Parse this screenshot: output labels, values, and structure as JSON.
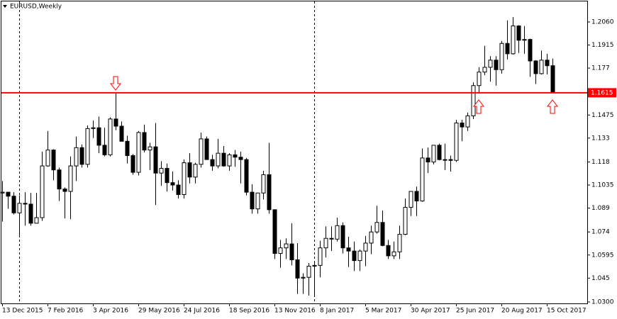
{
  "chart_data": {
    "type": "candlestick",
    "title": "EURUSD,Weekly",
    "categories": [
      "13 Dec 2015",
      null,
      null,
      null,
      null,
      null,
      null,
      null,
      "7 Feb 2016",
      null,
      null,
      null,
      null,
      null,
      null,
      null,
      "3 Apr 2016",
      null,
      null,
      null,
      null,
      null,
      null,
      null,
      "29 May 2016",
      null,
      null,
      null,
      null,
      null,
      null,
      null,
      "24 Jul 2016",
      null,
      null,
      null,
      null,
      null,
      null,
      null,
      "18 Sep 2016",
      null,
      null,
      null,
      null,
      null,
      null,
      null,
      "13 Nov 2016",
      null,
      null,
      null,
      null,
      null,
      null,
      null,
      "8 Jan 2017",
      null,
      null,
      null,
      null,
      null,
      null,
      null,
      "5 Mar 2017",
      null,
      null,
      null,
      null,
      null,
      null,
      null,
      "30 Apr 2017",
      null,
      null,
      null,
      null,
      null,
      null,
      null,
      "25 Jun 2017",
      null,
      null,
      null,
      null,
      null,
      null,
      null,
      "20 Aug 2017",
      null,
      null,
      null,
      null,
      null,
      null,
      null,
      "15 Oct 2017",
      null
    ],
    "open": [
      1.0985,
      1.099,
      1.0965,
      1.086,
      1.092,
      1.0915,
      1.0795,
      1.083,
      1.1155,
      1.1255,
      1.113,
      1.101,
      1.0995,
      1.1155,
      1.127,
      1.1165,
      1.139,
      1.1395,
      1.1285,
      1.1225,
      1.145,
      1.1405,
      1.131,
      1.122,
      1.1115,
      1.1365,
      1.1255,
      1.1275,
      1.111,
      1.114,
      1.105,
      1.1035,
      1.0975,
      1.1175,
      1.1085,
      1.1165,
      1.1325,
      1.1195,
      1.1155,
      1.1235,
      1.1155,
      1.1225,
      1.121,
      1.1195,
      1.099,
      1.0885,
      1.0985,
      1.11,
      1.088,
      1.0605,
      1.064,
      1.0665,
      1.0565,
      1.045,
      1.0455,
      1.0525,
      1.053,
      1.064,
      1.07,
      1.0695,
      1.078,
      1.064,
      1.062,
      1.056,
      1.062,
      1.067,
      1.074,
      1.08,
      1.0655,
      1.059,
      1.0615,
      1.0725,
      1.0895,
      1.0995,
      1.0935,
      1.1205,
      1.118,
      1.1285,
      1.1195,
      1.1195,
      1.119,
      1.1425,
      1.14,
      1.147,
      1.166,
      1.1745,
      1.1775,
      1.182,
      1.176,
      1.1925,
      1.186,
      1.2035,
      1.1945,
      1.195,
      1.1815,
      1.1735,
      1.182,
      1.1785
    ],
    "high": [
      1.106,
      1.099,
      1.099,
      1.097,
      1.099,
      1.0985,
      1.0985,
      1.1245,
      1.1375,
      1.126,
      1.1145,
      1.102,
      1.1215,
      1.134,
      1.129,
      1.141,
      1.144,
      1.1465,
      1.1395,
      1.146,
      1.1615,
      1.1435,
      1.1345,
      1.123,
      1.1375,
      1.1415,
      1.13,
      1.1425,
      1.1185,
      1.117,
      1.112,
      1.1065,
      1.1195,
      1.1235,
      1.1175,
      1.1365,
      1.134,
      1.1225,
      1.1325,
      1.128,
      1.1235,
      1.1255,
      1.1245,
      1.1205,
      1.104,
      1.0985,
      1.1125,
      1.13,
      1.088,
      1.069,
      1.07,
      1.0795,
      1.067,
      1.048,
      1.0545,
      1.0545,
      1.0685,
      1.0775,
      1.0775,
      1.083,
      1.08,
      1.071,
      1.068,
      1.063,
      1.0715,
      1.078,
      1.0905,
      1.0875,
      1.069,
      1.068,
      1.078,
      1.095,
      1.0995,
      1.1025,
      1.1265,
      1.127,
      1.1285,
      1.1295,
      1.1295,
      1.122,
      1.1445,
      1.1445,
      1.149,
      1.168,
      1.1775,
      1.191,
      1.1845,
      1.1845,
      1.194,
      1.207,
      1.209,
      1.204,
      1.2035,
      1.1955,
      1.182,
      1.188,
      1.186,
      1.183
    ],
    "low": [
      1.0805,
      1.0885,
      1.085,
      1.071,
      1.078,
      1.078,
      1.0795,
      1.081,
      1.115,
      1.1065,
      1.0935,
      1.0825,
      1.082,
      1.106,
      1.1145,
      1.1145,
      1.133,
      1.1235,
      1.1215,
      1.1215,
      1.138,
      1.131,
      1.117,
      1.11,
      1.1095,
      1.124,
      1.113,
      1.091,
      1.103,
      1.0995,
      1.1,
      1.095,
      1.095,
      1.1045,
      1.1045,
      1.1145,
      1.1195,
      1.1125,
      1.114,
      1.115,
      1.1125,
      1.115,
      1.1045,
      1.097,
      1.0855,
      1.0855,
      1.0945,
      1.0855,
      1.057,
      1.0515,
      1.057,
      1.053,
      1.035,
      1.035,
      1.034,
      1.034,
      1.0455,
      1.058,
      1.062,
      1.068,
      1.0605,
      1.052,
      1.0495,
      1.0495,
      1.0525,
      1.06,
      1.073,
      1.065,
      1.057,
      1.057,
      1.057,
      1.072,
      1.084,
      1.084,
      1.093,
      1.111,
      1.1165,
      1.119,
      1.113,
      1.112,
      1.118,
      1.131,
      1.1375,
      1.145,
      1.161,
      1.1725,
      1.1685,
      1.166,
      1.1735,
      1.1825,
      1.1855,
      1.1865,
      1.186,
      1.1715,
      1.167,
      1.173,
      1.173,
      1.1615
    ],
    "close": [
      1.099,
      1.0965,
      1.086,
      1.092,
      1.0915,
      1.0795,
      1.083,
      1.1155,
      1.1255,
      1.113,
      1.101,
      1.0995,
      1.1155,
      1.127,
      1.1165,
      1.139,
      1.1395,
      1.1285,
      1.1225,
      1.145,
      1.1405,
      1.131,
      1.122,
      1.1115,
      1.1365,
      1.1255,
      1.1275,
      1.111,
      1.114,
      1.105,
      1.1035,
      1.0975,
      1.1175,
      1.1085,
      1.1165,
      1.1325,
      1.1195,
      1.1155,
      1.1235,
      1.1155,
      1.1225,
      1.121,
      1.1195,
      1.099,
      1.0885,
      1.0985,
      1.11,
      1.088,
      1.0605,
      1.064,
      1.0665,
      1.0565,
      1.045,
      1.0455,
      1.0525,
      1.053,
      1.064,
      1.07,
      1.0695,
      1.078,
      1.064,
      1.062,
      1.056,
      1.062,
      1.067,
      1.074,
      1.08,
      1.0655,
      1.059,
      1.0615,
      1.0725,
      1.0895,
      1.0995,
      1.0935,
      1.1205,
      1.118,
      1.1285,
      1.1195,
      1.1195,
      1.119,
      1.1425,
      1.14,
      1.147,
      1.166,
      1.1745,
      1.1775,
      1.182,
      1.176,
      1.1925,
      1.186,
      1.2035,
      1.1945,
      1.195,
      1.1815,
      1.1735,
      1.182,
      1.1785,
      1.1615
    ],
    "ylim": [
      1.0291,
      1.2198
    ],
    "yticks": [
      {
        "value": 1.206,
        "label": "1.2060"
      },
      1.1915,
      1.177,
      1.1475,
      1.133,
      1.118,
      1.1035,
      1.089,
      1.074,
      1.0595,
      1.045,
      {
        "value": 1.03,
        "label": "1.0300"
      }
    ],
    "level": 1.1615,
    "level_color": "#ff0000",
    "up_color": "#ffffff",
    "down_color": "#000000"
  }
}
